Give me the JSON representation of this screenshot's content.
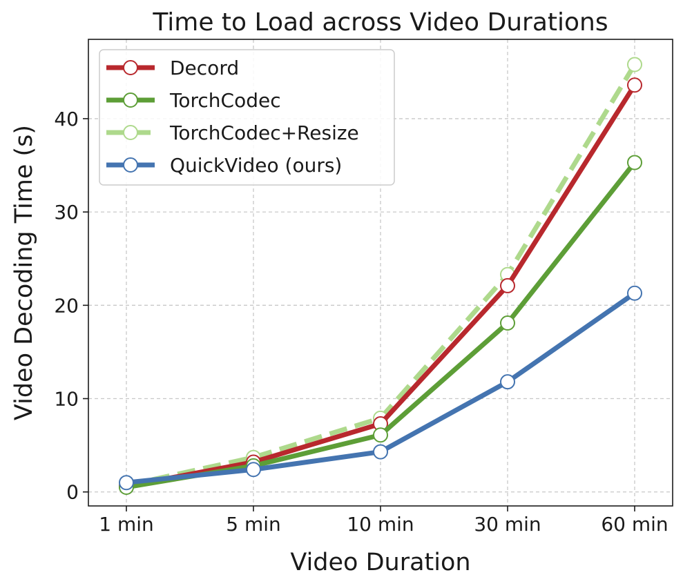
{
  "chart_data": {
    "type": "line",
    "title": "Time to Load across Video Durations",
    "xlabel": "Video Duration",
    "ylabel": "Video Decoding Time (s)",
    "categories": [
      "1 min",
      "5 min",
      "10 min",
      "30 min",
      "60 min"
    ],
    "ylim": [
      -1.5,
      48.5
    ],
    "yticks": [
      0,
      10,
      20,
      30,
      40
    ],
    "grid": true,
    "legend_position": "top-left",
    "series": [
      {
        "name": "Decord",
        "values": [
          0.6,
          3.2,
          7.3,
          22.1,
          43.6
        ],
        "color": "#b8282d",
        "dashed": false
      },
      {
        "name": "TorchCodec",
        "values": [
          0.5,
          2.8,
          6.1,
          18.1,
          35.3
        ],
        "color": "#5d9e37",
        "dashed": false
      },
      {
        "name": "TorchCodec+Resize",
        "values": [
          0.7,
          3.7,
          7.9,
          23.3,
          45.8
        ],
        "color": "#aed98c",
        "dashed": true
      },
      {
        "name": "QuickVideo (ours)",
        "values": [
          1.0,
          2.4,
          4.3,
          11.8,
          21.3
        ],
        "color": "#4474b0",
        "dashed": false
      }
    ]
  }
}
